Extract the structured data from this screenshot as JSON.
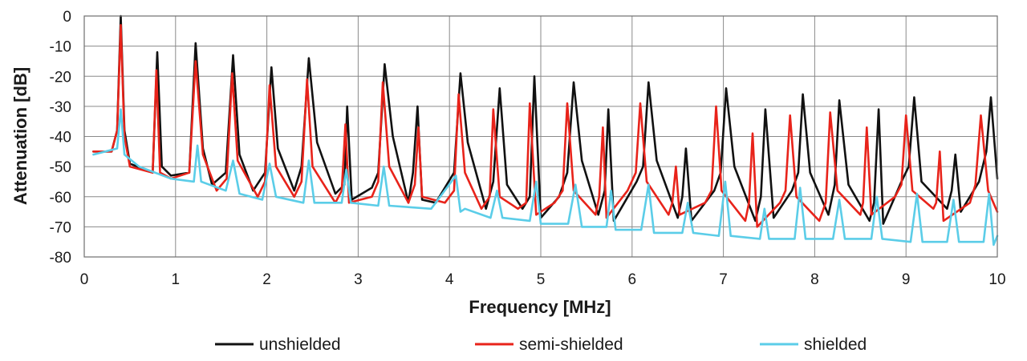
{
  "chart_data": {
    "type": "line",
    "title": "",
    "xlabel": "Frequency [MHz]",
    "ylabel": "Attenuation [dB]",
    "xlim": [
      0,
      10
    ],
    "ylim": [
      -80,
      0
    ],
    "xticks": [
      0,
      1,
      2,
      3,
      4,
      5,
      6,
      7,
      8,
      9,
      10
    ],
    "yticks": [
      0,
      -10,
      -20,
      -30,
      -40,
      -50,
      -60,
      -70,
      -80
    ],
    "grid": true,
    "legend": "bottom",
    "series": [
      {
        "name": "unshielded",
        "color": "#111111",
        "x": [
          0.1,
          0.3,
          0.36,
          0.4,
          0.44,
          0.5,
          0.75,
          0.8,
          0.85,
          0.95,
          1.15,
          1.22,
          1.3,
          1.4,
          1.55,
          1.63,
          1.7,
          1.85,
          1.98,
          2.05,
          2.12,
          2.3,
          2.38,
          2.46,
          2.55,
          2.75,
          2.85,
          2.88,
          2.93,
          3.15,
          3.22,
          3.29,
          3.38,
          3.55,
          3.6,
          3.65,
          3.7,
          3.85,
          4.05,
          4.12,
          4.2,
          4.4,
          4.48,
          4.55,
          4.63,
          4.8,
          4.88,
          4.93,
          5.0,
          5.2,
          5.29,
          5.36,
          5.45,
          5.63,
          5.7,
          5.74,
          5.8,
          6.05,
          6.12,
          6.18,
          6.27,
          6.5,
          6.55,
          6.59,
          6.65,
          6.9,
          6.97,
          7.03,
          7.12,
          7.35,
          7.41,
          7.46,
          7.55,
          7.75,
          7.82,
          7.87,
          7.95,
          8.15,
          8.22,
          8.27,
          8.37,
          8.6,
          8.65,
          8.7,
          8.75,
          8.95,
          9.03,
          9.09,
          9.17,
          9.45,
          9.5,
          9.54,
          9.6,
          9.8,
          9.88,
          9.93,
          10.0
        ],
        "y": [
          -45,
          -45,
          -38,
          0,
          -38,
          -49,
          -52,
          -12,
          -50,
          -53,
          -52,
          -9,
          -44,
          -56,
          -52,
          -13,
          -46,
          -58,
          -52,
          -17,
          -44,
          -58,
          -50,
          -14,
          -42,
          -59,
          -56,
          -30,
          -61,
          -57,
          -52,
          -16,
          -40,
          -62,
          -52,
          -30,
          -61,
          -62,
          -52,
          -19,
          -42,
          -64,
          -55,
          -24,
          -56,
          -64,
          -60,
          -20,
          -67,
          -60,
          -52,
          -22,
          -48,
          -66,
          -58,
          -31,
          -68,
          -55,
          -50,
          -22,
          -48,
          -67,
          -60,
          -44,
          -68,
          -58,
          -52,
          -24,
          -50,
          -68,
          -60,
          -31,
          -67,
          -58,
          -52,
          -26,
          -52,
          -66,
          -56,
          -28,
          -56,
          -68,
          -62,
          -31,
          -69,
          -55,
          -50,
          -27,
          -55,
          -64,
          -58,
          -46,
          -65,
          -55,
          -45,
          -27,
          -54
        ]
      },
      {
        "name": "semi-shielded",
        "color": "#e8231a",
        "x": [
          0.1,
          0.3,
          0.36,
          0.4,
          0.44,
          0.5,
          0.75,
          0.79,
          0.83,
          0.95,
          1.15,
          1.22,
          1.3,
          1.45,
          1.56,
          1.62,
          1.68,
          1.9,
          1.98,
          2.03,
          2.1,
          2.3,
          2.38,
          2.44,
          2.5,
          2.75,
          2.82,
          2.86,
          2.9,
          3.15,
          3.22,
          3.27,
          3.34,
          3.55,
          3.62,
          3.66,
          3.7,
          3.95,
          4.05,
          4.1,
          4.17,
          4.35,
          4.44,
          4.48,
          4.55,
          4.75,
          4.84,
          4.88,
          4.95,
          5.15,
          5.24,
          5.29,
          5.36,
          5.6,
          5.64,
          5.68,
          5.72,
          5.95,
          6.04,
          6.09,
          6.16,
          6.4,
          6.44,
          6.48,
          6.52,
          6.8,
          6.87,
          6.92,
          6.98,
          7.24,
          7.28,
          7.32,
          7.37,
          7.62,
          7.68,
          7.73,
          7.8,
          8.05,
          8.12,
          8.17,
          8.25,
          8.5,
          8.53,
          8.57,
          8.62,
          8.88,
          8.95,
          9.0,
          9.07,
          9.3,
          9.33,
          9.37,
          9.41,
          9.7,
          9.76,
          9.82,
          9.9,
          10.0
        ],
        "y": [
          -45,
          -45,
          -38,
          -3,
          -40,
          -50,
          -52,
          -18,
          -52,
          -54,
          -52,
          -15,
          -46,
          -58,
          -54,
          -19,
          -48,
          -60,
          -55,
          -23,
          -50,
          -60,
          -55,
          -21,
          -50,
          -62,
          -58,
          -36,
          -62,
          -60,
          -55,
          -22,
          -50,
          -62,
          -56,
          -37,
          -60,
          -62,
          -58,
          -26,
          -52,
          -64,
          -60,
          -31,
          -60,
          -64,
          -62,
          -29,
          -66,
          -62,
          -58,
          -29,
          -58,
          -66,
          -60,
          -37,
          -67,
          -58,
          -52,
          -29,
          -55,
          -66,
          -62,
          -50,
          -66,
          -62,
          -58,
          -30,
          -58,
          -68,
          -62,
          -39,
          -70,
          -62,
          -58,
          -33,
          -60,
          -68,
          -62,
          -32,
          -58,
          -66,
          -62,
          -37,
          -66,
          -60,
          -56,
          -33,
          -58,
          -64,
          -62,
          -45,
          -68,
          -62,
          -56,
          -33,
          -58,
          -65
        ]
      },
      {
        "name": "shielded",
        "color": "#5bcde8",
        "x": [
          0.1,
          0.36,
          0.4,
          0.44,
          0.6,
          0.95,
          1.2,
          1.24,
          1.28,
          1.55,
          1.63,
          1.7,
          1.95,
          2.03,
          2.1,
          2.4,
          2.46,
          2.52,
          2.82,
          2.87,
          2.92,
          3.22,
          3.28,
          3.34,
          3.8,
          4.07,
          4.12,
          4.17,
          4.45,
          4.52,
          4.58,
          4.88,
          4.95,
          5.0,
          5.3,
          5.38,
          5.45,
          5.72,
          5.77,
          5.82,
          6.1,
          6.18,
          6.24,
          6.55,
          6.61,
          6.67,
          6.95,
          7.02,
          7.08,
          7.4,
          7.45,
          7.5,
          7.78,
          7.84,
          7.9,
          8.2,
          8.27,
          8.33,
          8.62,
          8.68,
          8.74,
          9.05,
          9.12,
          9.18,
          9.45,
          9.52,
          9.58,
          9.85,
          9.91,
          9.96,
          10.0
        ],
        "y": [
          -46,
          -44,
          -31,
          -46,
          -50,
          -54,
          -55,
          -43,
          -55,
          -58,
          -48,
          -59,
          -61,
          -49,
          -60,
          -62,
          -48,
          -62,
          -62,
          -51,
          -62,
          -63,
          -50,
          -63,
          -64,
          -53,
          -65,
          -64,
          -67,
          -58,
          -67,
          -68,
          -55,
          -69,
          -69,
          -56,
          -70,
          -70,
          -58,
          -71,
          -71,
          -56,
          -72,
          -72,
          -62,
          -72,
          -73,
          -55,
          -73,
          -74,
          -64,
          -74,
          -74,
          -57,
          -74,
          -74,
          -61,
          -74,
          -74,
          -60,
          -74,
          -75,
          -59,
          -75,
          -75,
          -61,
          -75,
          -75,
          -59,
          -76,
          -73
        ]
      }
    ]
  }
}
